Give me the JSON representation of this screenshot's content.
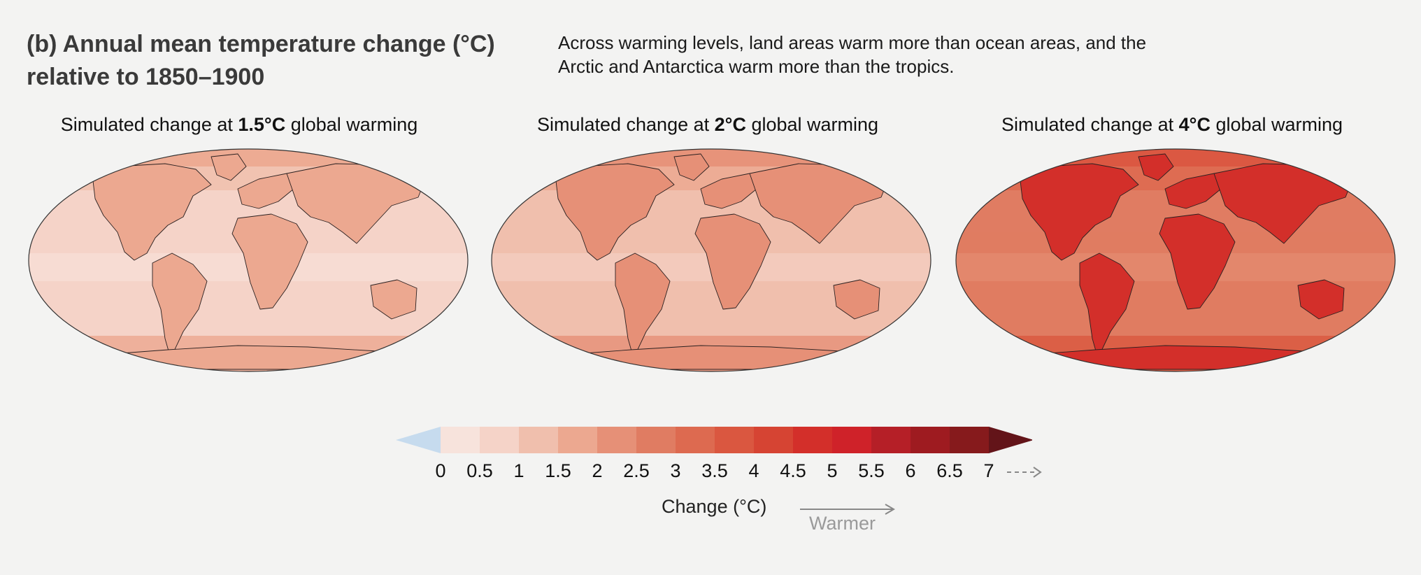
{
  "header": {
    "title_line1": "(b) Annual mean temperature change (°C)",
    "title_line2": "relative to 1850–1900",
    "description_line1": "Across warming levels, land areas warm more than ocean areas, and the",
    "description_line2": "Arctic and Antarctica warm more than the tropics."
  },
  "panels": [
    {
      "prefix": "Simulated change at ",
      "level": "1.5°C",
      "suffix": " global warming",
      "base_level": 2,
      "land_boost": 1,
      "arctic_boost": 3
    },
    {
      "prefix": "Simulated change at ",
      "level": "2°C",
      "suffix": " global warming",
      "base_level": 3,
      "land_boost": 1,
      "arctic_boost": 4
    },
    {
      "prefix": "Simulated change at ",
      "level": "4°C",
      "suffix": " global warming",
      "base_level": 6,
      "land_boost": 3,
      "arctic_boost": 7
    }
  ],
  "colorbar": {
    "label": "Change (°C)",
    "ticks": [
      "0",
      "0.5",
      "1",
      "1.5",
      "2",
      "2.5",
      "3",
      "3.5",
      "4",
      "4.5",
      "5",
      "5.5",
      "6",
      "6.5",
      "7"
    ],
    "below_color": "#c6dbee",
    "colors": [
      "#f7e3dc",
      "#f5d3c8",
      "#f0bfad",
      "#eca890",
      "#e69077",
      "#e07c62",
      "#dd6a50",
      "#da5740",
      "#d64433",
      "#d32f2a",
      "#cf2229",
      "#b51f27",
      "#9e1b20",
      "#861a1c"
    ],
    "above_color": "#631419",
    "arrow_text": "Warmer"
  }
}
